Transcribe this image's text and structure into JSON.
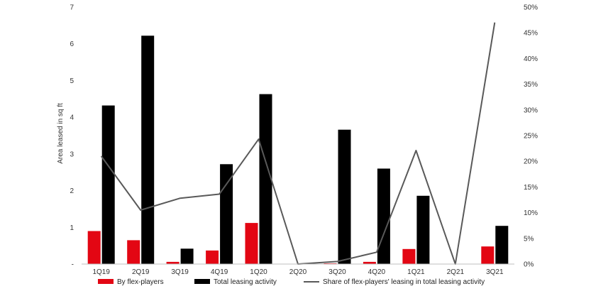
{
  "chart_data": {
    "type": "bar",
    "categories": [
      "1Q19",
      "2Q19",
      "3Q19",
      "4Q19",
      "1Q20",
      "2Q20",
      "3Q20",
      "4Q20",
      "1Q21",
      "2Q21",
      "3Q21"
    ],
    "series": [
      {
        "name": "By flex-players",
        "kind": "bar",
        "axis": "left",
        "color": "#e30613",
        "values": [
          0.9,
          0.65,
          0.06,
          0.37,
          1.12,
          0,
          0.02,
          0.06,
          0.41,
          0,
          0.48
        ]
      },
      {
        "name": "Total leasing activity",
        "kind": "bar",
        "axis": "left",
        "color": "#000000",
        "values": [
          4.32,
          6.22,
          0.42,
          2.72,
          4.63,
          0,
          3.66,
          2.6,
          1.86,
          0,
          1.04
        ]
      },
      {
        "name": "Share of flex-players' leasing in total leasing activity",
        "kind": "line",
        "axis": "right",
        "color": "#595959",
        "values": [
          21,
          10.5,
          12.8,
          13.6,
          24.3,
          0,
          0.5,
          2.3,
          22.1,
          0,
          47
        ]
      }
    ],
    "ylabel": "Area leased in sq ft",
    "ylim": [
      0,
      7
    ],
    "y_ticks": [
      "-",
      "1",
      "2",
      "3",
      "4",
      "5",
      "6",
      "7"
    ],
    "y2lim": [
      0,
      50
    ],
    "y2_ticks": [
      "0%",
      "5%",
      "10%",
      "15%",
      "20%",
      "25%",
      "30%",
      "35%",
      "40%",
      "45%",
      "50%"
    ],
    "grid": false,
    "legend_position": "bottom"
  }
}
